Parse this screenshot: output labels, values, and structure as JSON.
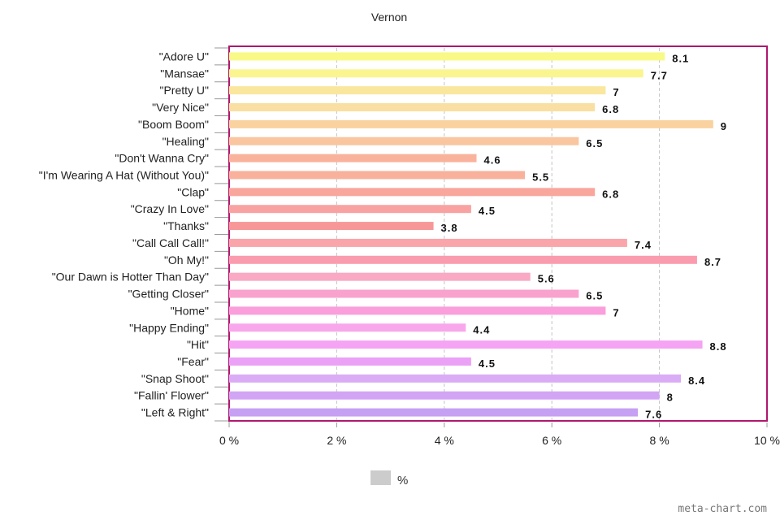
{
  "chart_data": {
    "type": "bar",
    "orientation": "horizontal",
    "title": "Vernon",
    "categories": [
      "\"Adore U\"",
      "\"Mansae\"",
      "\"Pretty U\"",
      "\"Very Nice\"",
      "\"Boom Boom\"",
      "\"Healing\"",
      "\"Don't Wanna Cry\"",
      "\"I'm Wearing A Hat (Without You)\"",
      "\"Clap\"",
      "\"Crazy In Love\"",
      "\"Thanks\"",
      "\"Call Call Call!\"",
      "\"Oh My!\"",
      "\"Our Dawn is Hotter Than Day\"",
      "\"Getting Closer\"",
      "\"Home\"",
      "\"Happy Ending\"",
      "\"Hit\"",
      "\"Fear\"",
      "\"Snap Shoot\"",
      "\"Fallin' Flower\"",
      "\"Left & Right\""
    ],
    "values": [
      8.1,
      7.7,
      7,
      6.8,
      9,
      6.5,
      4.6,
      5.5,
      6.8,
      4.5,
      3.8,
      7.4,
      8.7,
      5.6,
      6.5,
      7,
      4.4,
      8.8,
      4.5,
      8.4,
      8,
      7.6
    ],
    "value_labels": [
      "8.1",
      "7.7",
      "7",
      "6.8",
      "9",
      "6.5",
      "4.6",
      "5.5",
      "6.8",
      "4.5",
      "3.8",
      "7.4",
      "8.7",
      "5.6",
      "6.5",
      "7",
      "4.4",
      "8.8",
      "4.5",
      "8.4",
      "8",
      "7.6"
    ],
    "colors": [
      "#f8f987",
      "#faf58f",
      "#fae79d",
      "#f9dfa1",
      "#f9d29f",
      "#f9c69f",
      "#f9b39d",
      "#f9b19c",
      "#f9a69c",
      "#f8a3a2",
      "#f79797",
      "#f9a5a9",
      "#fa9cae",
      "#f9a9c4",
      "#f9a2cd",
      "#fa9edc",
      "#f9a7ec",
      "#f5a3f3",
      "#eba1f6",
      "#dbacf6",
      "#d1a5f4",
      "#c6a0f2"
    ],
    "xlim": [
      0,
      10
    ],
    "xticks": [
      0,
      2,
      4,
      6,
      8,
      10
    ],
    "xtick_labels": [
      "0 %",
      "2 %",
      "4 %",
      "6 %",
      "8 %",
      "10 %"
    ],
    "xlabel": "",
    "ylabel": "",
    "grid": true,
    "frame_color": "#b0176e",
    "legend": {
      "label": "%",
      "position": "bottom",
      "swatch_color": "#cccccc"
    }
  },
  "credit": "meta-chart.com"
}
